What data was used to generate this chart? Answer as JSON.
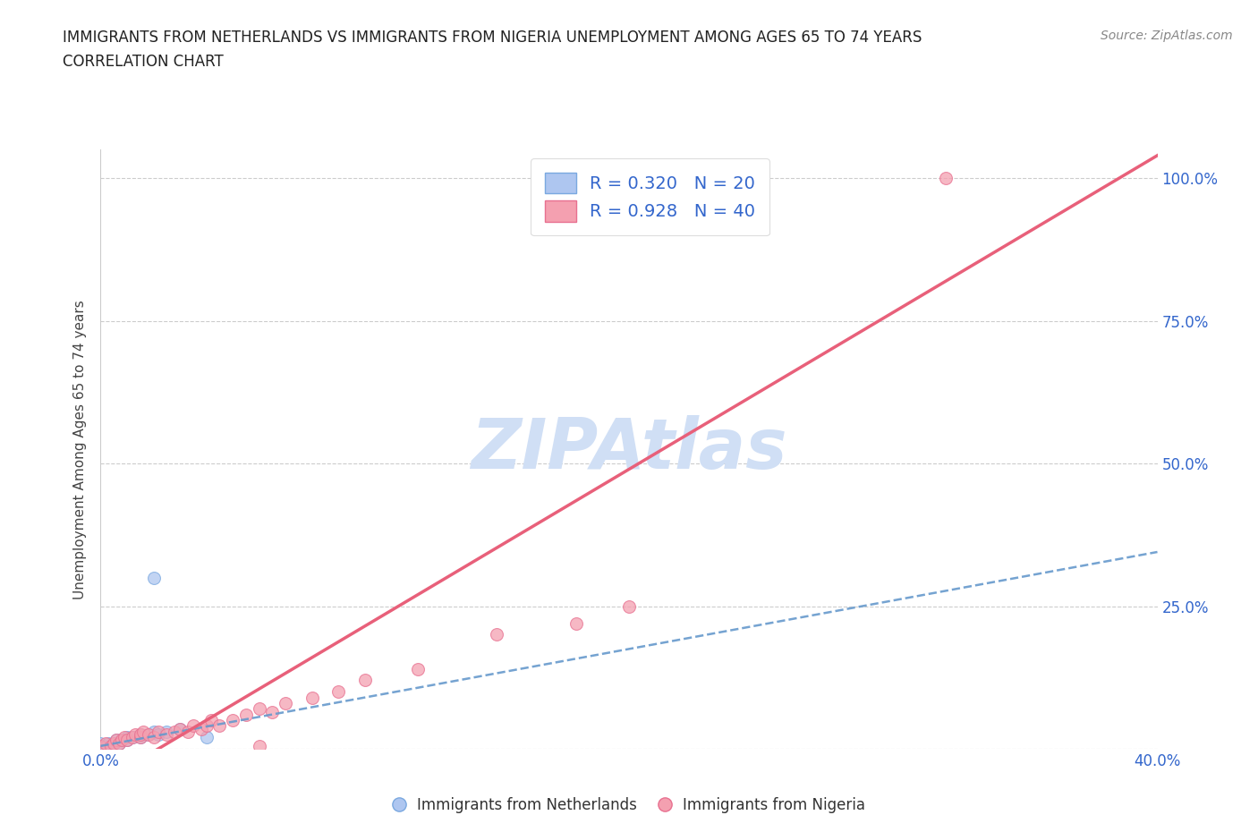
{
  "title_line1": "IMMIGRANTS FROM NETHERLANDS VS IMMIGRANTS FROM NIGERIA UNEMPLOYMENT AMONG AGES 65 TO 74 YEARS",
  "title_line2": "CORRELATION CHART",
  "source_text": "Source: ZipAtlas.com",
  "ylabel": "Unemployment Among Ages 65 to 74 years",
  "xlim": [
    0.0,
    0.4
  ],
  "ylim": [
    0.0,
    1.05
  ],
  "x_ticks": [
    0.0,
    0.1,
    0.2,
    0.3,
    0.4
  ],
  "x_tick_labels": [
    "0.0%",
    "",
    "",
    "",
    "40.0%"
  ],
  "y_ticks": [
    0.0,
    0.25,
    0.5,
    0.75,
    1.0
  ],
  "y_tick_labels": [
    "",
    "25.0%",
    "50.0%",
    "75.0%",
    "100.0%"
  ],
  "netherlands_color": "#aec6f0",
  "netherlands_edge_color": "#7aa8e0",
  "nigeria_color": "#f4a0b0",
  "nigeria_edge_color": "#e87090",
  "netherlands_R": 0.32,
  "netherlands_N": 20,
  "nigeria_R": 0.928,
  "nigeria_N": 40,
  "legend_label_color": "#3366cc",
  "watermark": "ZIPAtlas",
  "watermark_color": "#d0dff5",
  "nl_line_color": "#6699cc",
  "ng_line_color": "#e8607a",
  "netherlands_scatter": [
    [
      0.0,
      0.005
    ],
    [
      0.0,
      0.01
    ],
    [
      0.002,
      0.005
    ],
    [
      0.003,
      0.01
    ],
    [
      0.005,
      0.01
    ],
    [
      0.006,
      0.015
    ],
    [
      0.007,
      0.01
    ],
    [
      0.008,
      0.015
    ],
    [
      0.01,
      0.02
    ],
    [
      0.01,
      0.015
    ],
    [
      0.012,
      0.02
    ],
    [
      0.015,
      0.02
    ],
    [
      0.015,
      0.025
    ],
    [
      0.018,
      0.025
    ],
    [
      0.02,
      0.03
    ],
    [
      0.022,
      0.025
    ],
    [
      0.025,
      0.03
    ],
    [
      0.03,
      0.035
    ],
    [
      0.02,
      0.3
    ],
    [
      0.04,
      0.02
    ]
  ],
  "nigeria_scatter": [
    [
      0.0,
      0.005
    ],
    [
      0.002,
      0.01
    ],
    [
      0.004,
      0.005
    ],
    [
      0.005,
      0.01
    ],
    [
      0.006,
      0.015
    ],
    [
      0.007,
      0.01
    ],
    [
      0.008,
      0.015
    ],
    [
      0.009,
      0.02
    ],
    [
      0.01,
      0.015
    ],
    [
      0.012,
      0.02
    ],
    [
      0.013,
      0.025
    ],
    [
      0.015,
      0.02
    ],
    [
      0.015,
      0.025
    ],
    [
      0.016,
      0.03
    ],
    [
      0.018,
      0.025
    ],
    [
      0.02,
      0.02
    ],
    [
      0.022,
      0.03
    ],
    [
      0.025,
      0.025
    ],
    [
      0.028,
      0.03
    ],
    [
      0.03,
      0.035
    ],
    [
      0.033,
      0.03
    ],
    [
      0.035,
      0.04
    ],
    [
      0.038,
      0.035
    ],
    [
      0.04,
      0.04
    ],
    [
      0.042,
      0.05
    ],
    [
      0.045,
      0.04
    ],
    [
      0.05,
      0.05
    ],
    [
      0.055,
      0.06
    ],
    [
      0.06,
      0.07
    ],
    [
      0.065,
      0.065
    ],
    [
      0.07,
      0.08
    ],
    [
      0.08,
      0.09
    ],
    [
      0.09,
      0.1
    ],
    [
      0.1,
      0.12
    ],
    [
      0.12,
      0.14
    ],
    [
      0.15,
      0.2
    ],
    [
      0.18,
      0.22
    ],
    [
      0.2,
      0.25
    ],
    [
      0.32,
      1.0
    ],
    [
      0.06,
      0.005
    ]
  ],
  "grid_color": "#cccccc",
  "grid_linestyle": "--",
  "background_color": "#ffffff",
  "dot_size": 100,
  "nl_line_slope": 0.85,
  "nl_line_intercept": 0.005,
  "ng_line_slope": 2.75,
  "ng_line_intercept": -0.06
}
